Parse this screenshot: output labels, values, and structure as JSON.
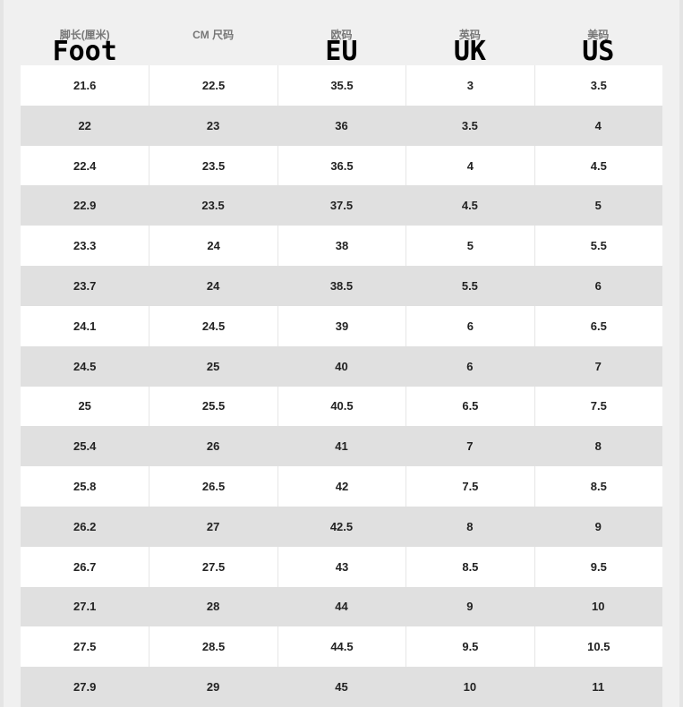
{
  "header": {
    "columns": [
      {
        "label": "脚长(厘米)",
        "code": "Foot"
      },
      {
        "label": "CM 尺码"
      },
      {
        "label": "欧码",
        "code": "EU"
      },
      {
        "label": "英码",
        "code": "UK"
      },
      {
        "label": "美码",
        "code": "US"
      }
    ]
  },
  "table": {
    "rows": [
      [
        "21.6",
        "22.5",
        "35.5",
        "3",
        "3.5"
      ],
      [
        "22",
        "23",
        "36",
        "3.5",
        "4"
      ],
      [
        "22.4",
        "23.5",
        "36.5",
        "4",
        "4.5"
      ],
      [
        "22.9",
        "23.5",
        "37.5",
        "4.5",
        "5"
      ],
      [
        "23.3",
        "24",
        "38",
        "5",
        "5.5"
      ],
      [
        "23.7",
        "24",
        "38.5",
        "5.5",
        "6"
      ],
      [
        "24.1",
        "24.5",
        "39",
        "6",
        "6.5"
      ],
      [
        "24.5",
        "25",
        "40",
        "6",
        "7"
      ],
      [
        "25",
        "25.5",
        "40.5",
        "6.5",
        "7.5"
      ],
      [
        "25.4",
        "26",
        "41",
        "7",
        "8"
      ],
      [
        "25.8",
        "26.5",
        "42",
        "7.5",
        "8.5"
      ],
      [
        "26.2",
        "27",
        "42.5",
        "8",
        "9"
      ],
      [
        "26.7",
        "27.5",
        "43",
        "8.5",
        "9.5"
      ],
      [
        "27.1",
        "28",
        "44",
        "9",
        "10"
      ],
      [
        "27.5",
        "28.5",
        "44.5",
        "9.5",
        "10.5"
      ],
      [
        "27.9",
        "29",
        "45",
        "10",
        "11"
      ]
    ]
  }
}
